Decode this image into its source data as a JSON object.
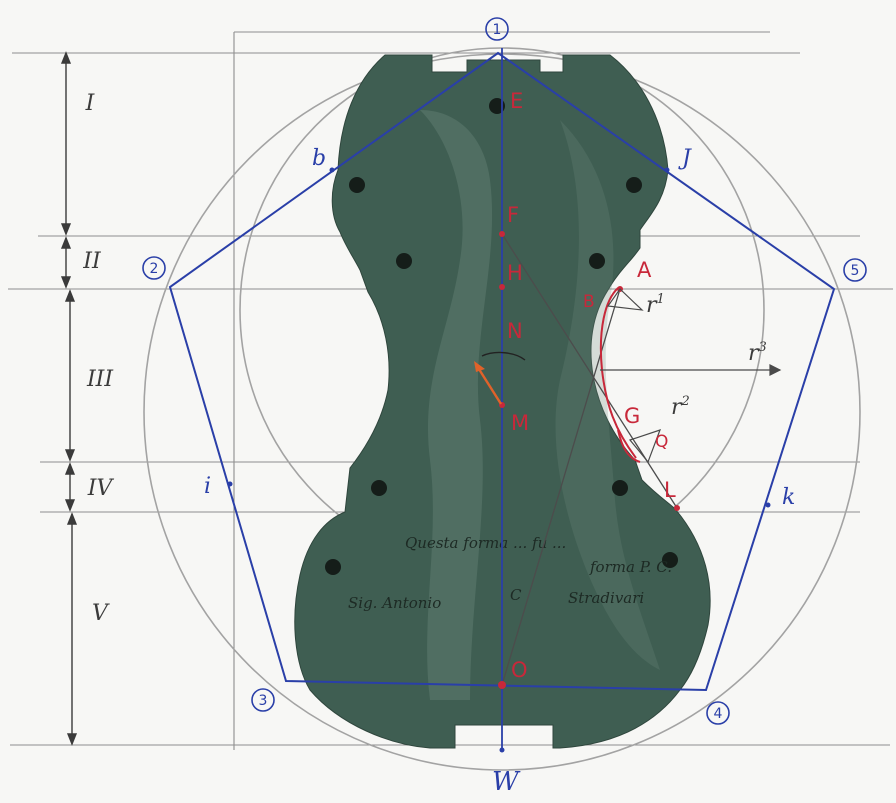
{
  "colors": {
    "paper": "#f7f7f5",
    "mould": "#3f5e52",
    "mould_light": "#6f8c80",
    "blue_ink": "#2a3fa8",
    "red_ink": "#c8283a",
    "pencil": "#9a9a9a",
    "dark_ink": "#3b3b3b"
  },
  "vertex_labels": [
    "1",
    "2",
    "3",
    "4",
    "5"
  ],
  "zone_labels": [
    "I",
    "II",
    "III",
    "IV",
    "V"
  ],
  "blue_points": {
    "b": "b",
    "J": "J",
    "i": "i",
    "k": "k",
    "W": "W"
  },
  "red_points": {
    "E": "E",
    "F": "F",
    "H": "H",
    "N": "N",
    "M": "M",
    "O": "O",
    "A": "A",
    "B": "B",
    "G": "G",
    "Q": "Q",
    "L": "L"
  },
  "radii": {
    "r1": "r",
    "r1_sup": "1",
    "r2": "r",
    "r2_sup": "2",
    "r3": "r",
    "r3_sup": "3"
  },
  "mould_inscription": {
    "line1": "Questa forma ... fu ...",
    "line2": "forma P. C.",
    "line3": "Sig. Antonio",
    "line4": "Stradivari",
    "mark": "C"
  },
  "icons": [
    "pencil-arrow-icon",
    "orange-arrow-icon"
  ]
}
